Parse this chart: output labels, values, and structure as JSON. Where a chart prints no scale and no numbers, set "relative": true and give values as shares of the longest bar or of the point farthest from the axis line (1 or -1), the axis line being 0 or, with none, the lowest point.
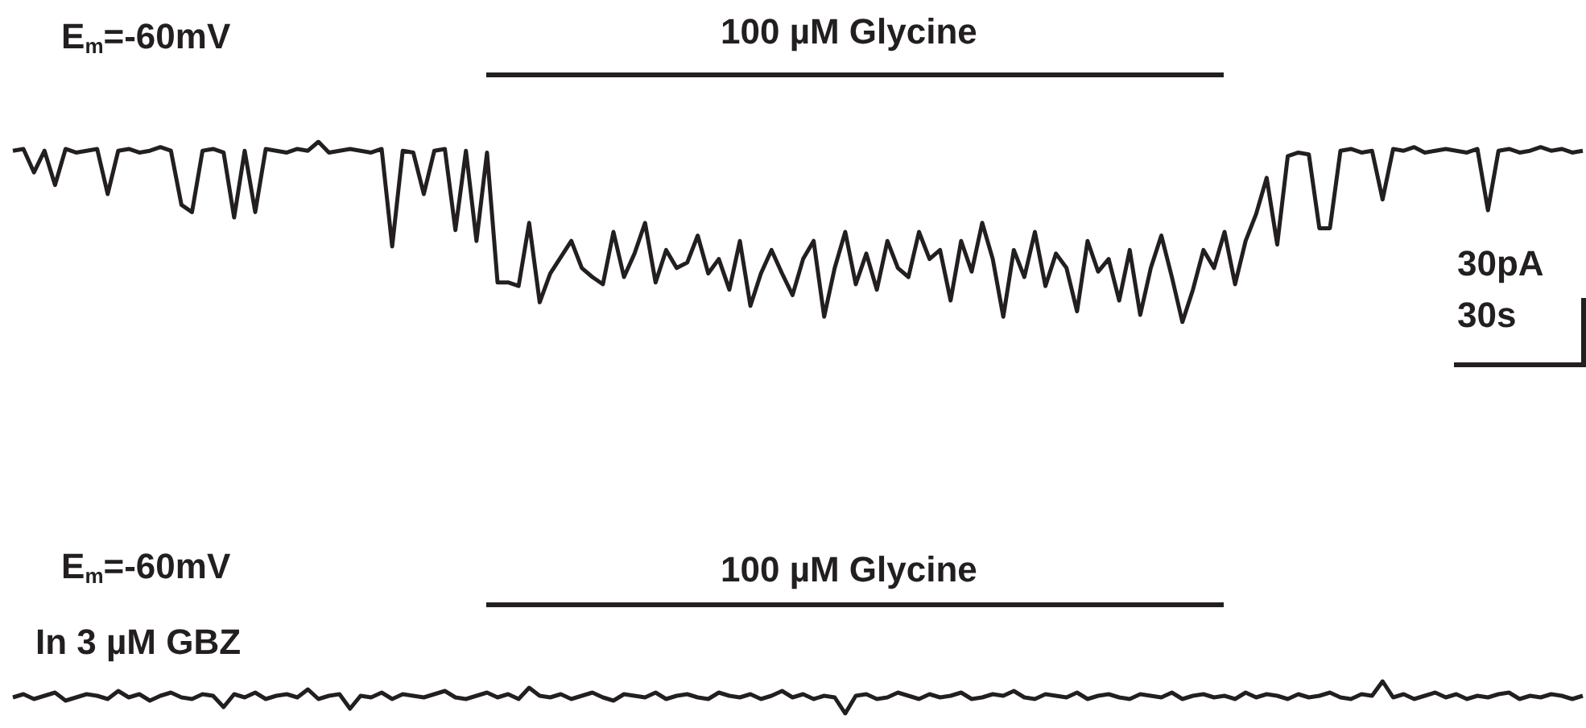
{
  "chart_data": [
    {
      "type": "line",
      "relative": true,
      "annotations": [
        "E$_{m}$=-60mV",
        "100 µM Glycine",
        "30pA",
        "30s"
      ],
      "categories": [
        null,
        null,
        null,
        null,
        null,
        null,
        null,
        null,
        null,
        null,
        null,
        null,
        null,
        null,
        null,
        null,
        null,
        null,
        null,
        null,
        null,
        null,
        null,
        null,
        null,
        null,
        null,
        null,
        null,
        null,
        null,
        null,
        null,
        null,
        null,
        null,
        null,
        null,
        null,
        null,
        null,
        null,
        null,
        null,
        null,
        null,
        null,
        null,
        null,
        null,
        null,
        null,
        null,
        null,
        null,
        null,
        null,
        null,
        null,
        null,
        null,
        null,
        null,
        null,
        null,
        null,
        null,
        null,
        null,
        null,
        null,
        null,
        null,
        null,
        null,
        null,
        null,
        null,
        null,
        null,
        null,
        null,
        null,
        null,
        null,
        null,
        null,
        null,
        null,
        null,
        null,
        null,
        null,
        null,
        null,
        null,
        null,
        null,
        null,
        null,
        null,
        null,
        null,
        null,
        null,
        null,
        null,
        null,
        null,
        null,
        null,
        null,
        null,
        null,
        null,
        null,
        null,
        null,
        null,
        null,
        null,
        null,
        null,
        null,
        null,
        null,
        null,
        null,
        null,
        null,
        null,
        null,
        null,
        null,
        null,
        null,
        null,
        null,
        null,
        null,
        null,
        null,
        null,
        null,
        null,
        null,
        null,
        null,
        null,
        null
      ],
      "series": [
        {
          "color": "#231f20",
          "values": [
            0.95,
            0.96,
            0.83,
            0.95,
            0.76,
            0.96,
            0.94,
            0.95,
            0.96,
            0.71,
            0.95,
            0.96,
            0.94,
            0.95,
            0.97,
            0.95,
            0.65,
            0.61,
            0.95,
            0.96,
            0.94,
            0.58,
            0.95,
            0.61,
            0.96,
            0.95,
            0.94,
            0.96,
            0.95,
            1,
            0.94,
            0.95,
            0.96,
            0.95,
            0.94,
            0.96,
            0.42,
            0.95,
            0.94,
            0.71,
            0.95,
            0.96,
            0.51,
            0.95,
            0.45,
            0.94,
            0.22,
            0.22,
            0.2,
            0.55,
            0.11,
            0.27,
            0.36,
            0.45,
            0.3,
            0.25,
            0.21,
            0.5,
            0.25,
            0.38,
            0.55,
            0.22,
            0.4,
            0.3,
            0.33,
            0.48,
            0.27,
            0.35,
            0.18,
            0.45,
            0.09,
            0.27,
            0.4,
            0.27,
            0.15,
            0.35,
            0.45,
            0.03,
            0.3,
            0.5,
            0.21,
            0.38,
            0.18,
            0.45,
            0.3,
            0.25,
            0.5,
            0.35,
            0.4,
            0.12,
            0.45,
            0.28,
            0.55,
            0.35,
            0.03,
            0.4,
            0.25,
            0.5,
            0.2,
            0.38,
            0.3,
            0.06,
            0.45,
            0.28,
            0.35,
            0.12,
            0.4,
            0.04,
            0.3,
            0.48,
            0.25,
            0,
            0.18,
            0.4,
            0.3,
            0.5,
            0.21,
            0.45,
            0.6,
            0.8,
            0.43,
            0.92,
            0.94,
            0.93,
            0.52,
            0.52,
            0.95,
            0.96,
            0.94,
            0.95,
            0.68,
            0.96,
            0.95,
            0.97,
            0.94,
            0.95,
            0.96,
            0.95,
            0.94,
            0.96,
            0.62,
            0.95,
            0.96,
            0.94,
            0.95,
            0.97,
            0.95,
            0.96,
            0.94,
            0.95
          ]
        }
      ]
    },
    {
      "type": "line",
      "relative": true,
      "annotations": [
        "E$_{m}$=-60mV",
        "100 µM Glycine",
        "In 3 µM GBZ"
      ],
      "categories": [
        null,
        null,
        null,
        null,
        null,
        null,
        null,
        null,
        null,
        null,
        null,
        null,
        null,
        null,
        null,
        null,
        null,
        null,
        null,
        null,
        null,
        null,
        null,
        null,
        null,
        null,
        null,
        null,
        null,
        null,
        null,
        null,
        null,
        null,
        null,
        null,
        null,
        null,
        null,
        null,
        null,
        null,
        null,
        null,
        null,
        null,
        null,
        null,
        null,
        null,
        null,
        null,
        null,
        null,
        null,
        null,
        null,
        null,
        null,
        null,
        null,
        null,
        null,
        null,
        null,
        null,
        null,
        null,
        null,
        null,
        null,
        null,
        null,
        null,
        null,
        null,
        null,
        null,
        null,
        null,
        null,
        null,
        null,
        null,
        null,
        null,
        null,
        null,
        null,
        null,
        null,
        null,
        null,
        null,
        null,
        null,
        null,
        null,
        null,
        null,
        null,
        null,
        null,
        null,
        null,
        null,
        null,
        null,
        null,
        null,
        null,
        null,
        null,
        null,
        null,
        null,
        null,
        null,
        null,
        null,
        null,
        null,
        null,
        null,
        null,
        null,
        null,
        null,
        null,
        null,
        null,
        null,
        null,
        null,
        null,
        null,
        null,
        null,
        null,
        null,
        null,
        null,
        null,
        null,
        null,
        null,
        null,
        null,
        null,
        null
      ],
      "series": [
        {
          "color": "#231f20",
          "values": [
            0.5,
            0.6,
            0.45,
            0.55,
            0.65,
            0.4,
            0.5,
            0.6,
            0.55,
            0.45,
            0.7,
            0.5,
            0.6,
            0.4,
            0.55,
            0.65,
            0.5,
            0.45,
            0.6,
            0.55,
            0.2,
            0.6,
            0.5,
            0.65,
            0.45,
            0.55,
            0.6,
            0.5,
            0.75,
            0.45,
            0.55,
            0.6,
            0.15,
            0.55,
            0.5,
            0.65,
            0.45,
            0.6,
            0.55,
            0.5,
            0.6,
            0.7,
            0.5,
            0.45,
            0.55,
            0.65,
            0.5,
            0.6,
            0.45,
            0.8,
            0.55,
            0.5,
            0.6,
            0.45,
            0.55,
            0.65,
            0.5,
            0.4,
            0.6,
            0.55,
            0.5,
            0.65,
            0.45,
            0.55,
            0.6,
            0.5,
            0.45,
            0.65,
            0.55,
            0.5,
            0.6,
            0.45,
            0.55,
            0.7,
            0.5,
            0.6,
            0.45,
            0.55,
            0.5,
            0,
            0.55,
            0.6,
            0.45,
            0.5,
            0.65,
            0.55,
            0.45,
            0.6,
            0.5,
            0.55,
            0.65,
            0.45,
            0.5,
            0.6,
            0.55,
            0.7,
            0.5,
            0.45,
            0.6,
            0.55,
            0.5,
            0.65,
            0.45,
            0.55,
            0.6,
            0.5,
            0.45,
            0.6,
            0.55,
            0.5,
            0.65,
            0.45,
            0.55,
            0.6,
            0.5,
            0.55,
            0.45,
            0.65,
            0.5,
            0.6,
            0.55,
            0.45,
            0.6,
            0.5,
            0.55,
            0.65,
            0.5,
            0.45,
            0.6,
            0.55,
            1,
            0.5,
            0.6,
            0.45,
            0.55,
            0.65,
            0.5,
            0.6,
            0.45,
            0.55,
            0.5,
            0.6,
            0.65,
            0.45,
            0.55,
            0.5,
            0.6,
            0.55,
            0.45,
            0.55
          ]
        }
      ]
    }
  ]
}
